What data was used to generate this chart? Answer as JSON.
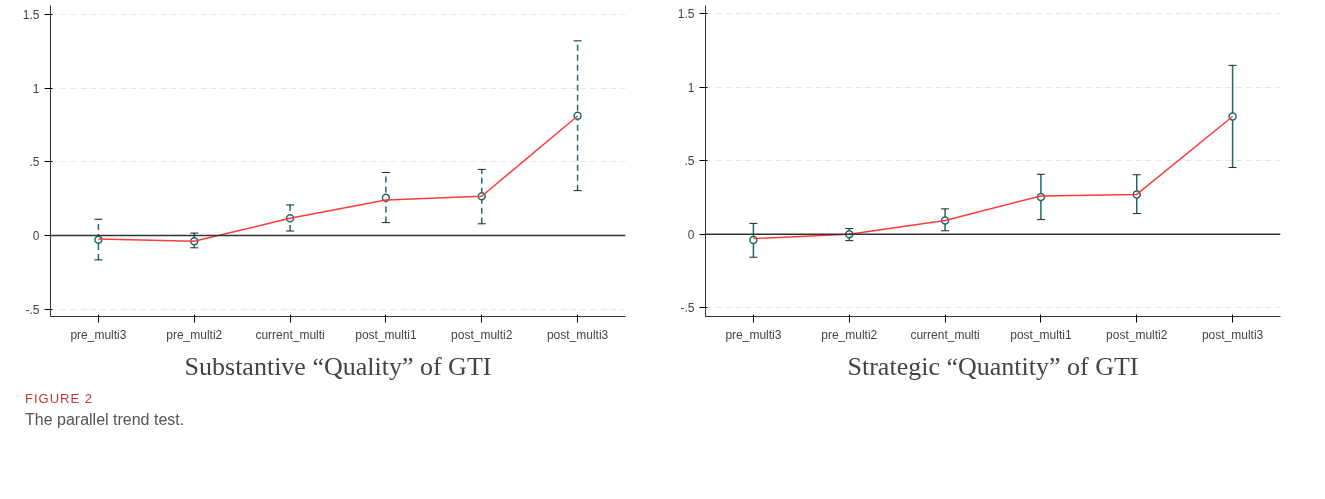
{
  "chart_data": [
    {
      "type": "line",
      "title": "Substantive “Quality” of GTI",
      "categories": [
        "pre_multi3",
        "pre_multi2",
        "current_multi",
        "post_multi1",
        "post_multi2",
        "post_multi3"
      ],
      "series": [
        {
          "type": "scatter",
          "color": "#1f6b6b",
          "marker": "circle",
          "line_style": "dashed",
          "values": [
            -0.03,
            -0.04,
            0.117,
            0.255,
            0.266,
            0.812
          ],
          "errors": [
            [
              -0.166,
              0.11
            ],
            [
              -0.084,
              0.016
            ],
            [
              0.03,
              0.207
            ],
            [
              0.087,
              0.427
            ],
            [
              0.079,
              0.448
            ],
            [
              0.304,
              1.32
            ]
          ]
        },
        {
          "color": "#ff3b3b",
          "values": [
            -0.025,
            -0.04,
            0.117,
            0.24,
            0.266,
            0.81
          ]
        }
      ],
      "ylim": [
        -0.55,
        1.56
      ],
      "yticks": [
        {
          "value": -0.5,
          "label": "-.5"
        },
        {
          "value": 0,
          "label": "0"
        },
        {
          "value": 0.5,
          "label": ".5"
        },
        {
          "value": 1,
          "label": "1"
        },
        {
          "value": 1.5,
          "label": "1.5"
        }
      ],
      "grid": "y",
      "ref_lines": [
        {
          "axis": "y",
          "value": 0,
          "color": "#333333"
        }
      ],
      "annotations": [
        "FIGURE 2",
        "The parallel trend test."
      ]
    },
    {
      "type": "line",
      "title": "Strategic “Quantity” of GTI",
      "categories": [
        "pre_multi3",
        "pre_multi2",
        "current_multi",
        "post_multi1",
        "post_multi2",
        "post_multi3"
      ],
      "series": [
        {
          "type": "scatter",
          "color": "#1f6b6b",
          "marker": "circle",
          "line_style": "solid",
          "values": [
            -0.04,
            0.0,
            0.093,
            0.253,
            0.27,
            0.8
          ],
          "errors": [
            [
              -0.157,
              0.073
            ],
            [
              -0.044,
              0.038
            ],
            [
              0.023,
              0.172
            ],
            [
              0.099,
              0.407
            ],
            [
              0.14,
              0.404
            ],
            [
              0.453,
              1.148
            ]
          ]
        },
        {
          "color": "#ff3b3b",
          "values": [
            -0.03,
            0.0,
            0.093,
            0.26,
            0.27,
            0.8
          ]
        }
      ],
      "ylim": [
        -0.56,
        1.555
      ],
      "yticks": [
        {
          "value": -0.5,
          "label": "-.5"
        },
        {
          "value": 0,
          "label": "0"
        },
        {
          "value": 0.5,
          "label": ".5"
        },
        {
          "value": 1,
          "label": "1"
        },
        {
          "value": 1.5,
          "label": "1.5"
        }
      ],
      "grid": "y",
      "ref_lines": [
        {
          "axis": "y",
          "value": 0,
          "color": "#333333"
        }
      ]
    }
  ]
}
